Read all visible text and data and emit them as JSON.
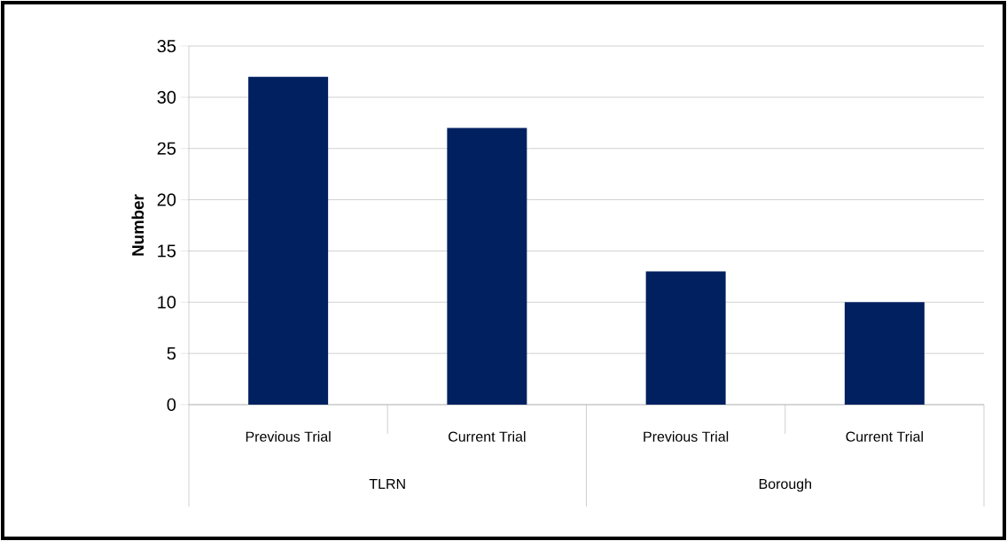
{
  "chart_data": {
    "type": "bar",
    "ylabel": "Number",
    "categories": [
      "Previous Trial",
      "Current Trial",
      "Previous Trial",
      "Current Trial"
    ],
    "values": [
      32,
      27,
      13,
      10
    ],
    "color": "#002060",
    "ylim": [
      0,
      35
    ],
    "yticks": [
      0,
      5,
      10,
      15,
      20,
      25,
      30,
      35
    ],
    "grid": "y",
    "annotations": [
      "TLRN",
      "Borough"
    ]
  }
}
